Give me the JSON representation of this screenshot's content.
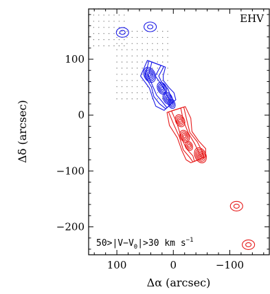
{
  "chart_data": {
    "type": "contour",
    "panel_label": "EHV",
    "annotation": {
      "prefix": "50>|V−V",
      "sub": "0",
      "mid": "|>30 km s",
      "sup": "−1"
    },
    "xlabel": "Δα (arcsec)",
    "ylabel": "Δδ (arcsec)",
    "x_range": [
      150,
      -170
    ],
    "y_range": [
      -250,
      190
    ],
    "x_axis_reversed": true,
    "x_ticks": [
      {
        "value": 100,
        "label": "100"
      },
      {
        "value": 0,
        "label": "0"
      },
      {
        "value": -100,
        "label": "−100"
      }
    ],
    "y_ticks": [
      {
        "value": 100,
        "label": "100"
      },
      {
        "value": 0,
        "label": "0"
      },
      {
        "value": -100,
        "label": "−100"
      },
      {
        "value": -200,
        "label": "−200"
      }
    ],
    "grid": false,
    "colors": {
      "blueshifted": "#1a1ae6",
      "redshifted": "#e61a1a",
      "sampling": "#7a7a7a"
    },
    "blueshifted_lobe": {
      "ridge": [
        {
          "x": 30,
          "y": 92
        },
        {
          "x": 38,
          "y": 70
        },
        {
          "x": 30,
          "y": 55
        },
        {
          "x": 22,
          "y": 40
        },
        {
          "x": 15,
          "y": 28
        },
        {
          "x": 6,
          "y": 18
        }
      ],
      "clumps": [
        {
          "x": 42,
          "y": 72,
          "levels": 5
        },
        {
          "x": 20,
          "y": 48,
          "levels": 4
        },
        {
          "x": 10,
          "y": 30,
          "levels": 4
        },
        {
          "x": 3,
          "y": 20,
          "levels": 3
        }
      ],
      "isolated": [
        {
          "x": 90,
          "y": 148
        },
        {
          "x": 41,
          "y": 158
        }
      ]
    },
    "redshifted_lobe": {
      "ridge": [
        {
          "x": -5,
          "y": 10
        },
        {
          "x": -12,
          "y": -12
        },
        {
          "x": -20,
          "y": -35
        },
        {
          "x": -30,
          "y": -55
        },
        {
          "x": -40,
          "y": -70
        },
        {
          "x": -44,
          "y": -80
        }
      ],
      "clumps": [
        {
          "x": -48,
          "y": -72,
          "levels": 5
        },
        {
          "x": -20,
          "y": -38,
          "levels": 4
        },
        {
          "x": -12,
          "y": -10,
          "levels": 4
        },
        {
          "x": -28,
          "y": -55,
          "levels": 3
        }
      ],
      "isolated": [
        {
          "x": -112,
          "y": -163
        },
        {
          "x": -133,
          "y": -232
        }
      ]
    }
  }
}
